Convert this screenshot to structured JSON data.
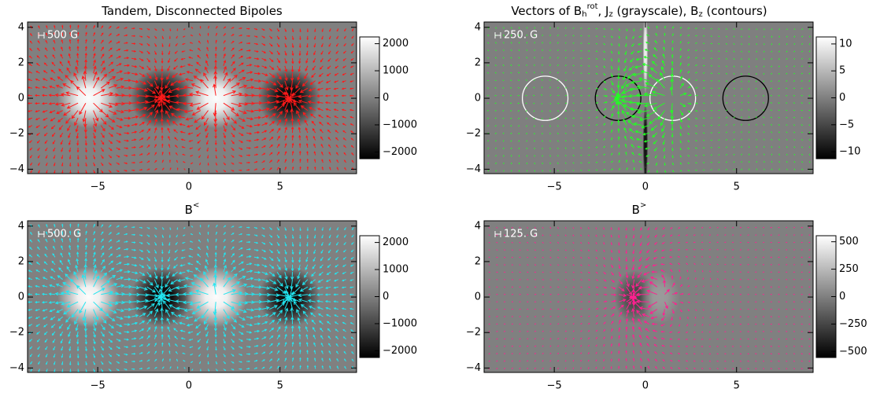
{
  "chart_data": [
    {
      "type": "vector-heatmap",
      "title": [
        {
          "text": "Tandem, Disconnected Bipoles"
        }
      ],
      "xlim": [
        -8.85,
        9.2
      ],
      "ylim": [
        -4.25,
        4.3
      ],
      "xticks": [
        {
          "value": -5,
          "label": "−5"
        },
        0,
        5
      ],
      "yticks": [
        {
          "value": -4,
          "label": "−4"
        },
        {
          "value": -2,
          "label": "−2"
        },
        0,
        2,
        4
      ],
      "zlim": [
        -2250,
        2250
      ],
      "zticks": [
        {
          "value": -2000,
          "label": "−2000"
        },
        {
          "value": -1000,
          "label": "−1000"
        },
        0,
        1000,
        2000
      ],
      "vector_label": "500 G",
      "vector_color": "#ff1a1a",
      "sources": [
        {
          "x": -5.5,
          "y": 0,
          "value": 2200
        },
        {
          "x": -1.5,
          "y": 0,
          "value": -2200
        },
        {
          "x": 1.5,
          "y": 0,
          "value": 2200
        },
        {
          "x": 5.5,
          "y": 0,
          "value": -2200
        }
      ]
    },
    {
      "type": "vector-heatmap",
      "title": [
        {
          "text": "Vectors of B"
        },
        {
          "text": "h",
          "style": "sub"
        },
        {
          "text": "rot",
          "style": "sup"
        },
        {
          "text": ", J"
        },
        {
          "text": "z",
          "style": "sub"
        },
        {
          "text": " (grayscale), B"
        },
        {
          "text": "z",
          "style": "sub"
        },
        {
          "text": " (contours)"
        }
      ],
      "xlim": [
        -8.85,
        9.2
      ],
      "ylim": [
        -4.25,
        4.3
      ],
      "xticks": [
        {
          "value": -5,
          "label": "−5"
        },
        0,
        5
      ],
      "yticks": [
        {
          "value": -4,
          "label": "−4"
        },
        {
          "value": -2,
          "label": "−2"
        },
        0,
        2,
        4
      ],
      "zlim": [
        -11.3,
        11.3
      ],
      "zticks": [
        {
          "value": -10,
          "label": "−10"
        },
        {
          "value": -5,
          "label": "−5"
        },
        0,
        5,
        10
      ],
      "vector_label": "250. G",
      "vector_color": "#22ff22",
      "sources": [
        {
          "x": 0,
          "y": 2.6,
          "value": 10
        },
        {
          "x": 0,
          "y": -2.6,
          "value": -10
        }
      ],
      "contours": [
        {
          "x": -5.5,
          "y": 0,
          "color": "#ffffff"
        },
        {
          "x": -1.5,
          "y": 0,
          "color": "#000000"
        },
        {
          "x": 1.5,
          "y": 0,
          "color": "#ffffff"
        },
        {
          "x": 5.5,
          "y": 0,
          "color": "#000000"
        }
      ]
    },
    {
      "type": "vector-heatmap",
      "title": [
        {
          "text": "B"
        },
        {
          "text": "<",
          "style": "sup"
        }
      ],
      "xlim": [
        -8.85,
        9.2
      ],
      "ylim": [
        -4.25,
        4.3
      ],
      "xticks": [
        {
          "value": -5,
          "label": "−5"
        },
        0,
        5
      ],
      "yticks": [
        {
          "value": -4,
          "label": "−4"
        },
        {
          "value": -2,
          "label": "−2"
        },
        0,
        2,
        4
      ],
      "zlim": [
        -2250,
        2250
      ],
      "zticks": [
        {
          "value": -2000,
          "label": "−2000"
        },
        {
          "value": -1000,
          "label": "−1000"
        },
        0,
        1000,
        2000
      ],
      "vector_label": "500. G",
      "vector_color": "#22e5f0",
      "sources": [
        {
          "x": -5.5,
          "y": 0,
          "value": 2200
        },
        {
          "x": -1.5,
          "y": 0,
          "value": -2200
        },
        {
          "x": 1.5,
          "y": 0,
          "value": 2200
        },
        {
          "x": 5.5,
          "y": 0,
          "value": -2200
        }
      ]
    },
    {
      "type": "vector-heatmap",
      "title": [
        {
          "text": "B"
        },
        {
          "text": ">",
          "style": "sup"
        }
      ],
      "xlim": [
        -8.85,
        9.2
      ],
      "ylim": [
        -4.25,
        4.3
      ],
      "xticks": [
        {
          "value": -5,
          "label": "−5"
        },
        0,
        5
      ],
      "yticks": [
        {
          "value": -4,
          "label": "−4"
        },
        {
          "value": -2,
          "label": "−2"
        },
        0,
        2,
        4
      ],
      "zlim": [
        -555,
        555
      ],
      "zticks": [
        {
          "value": -500,
          "label": "−500"
        },
        {
          "value": -250,
          "label": "−250"
        },
        0,
        250,
        500
      ],
      "vector_label": "125. G",
      "vector_color": "#ff2090",
      "sources": [
        {
          "x": -0.6,
          "y": 0,
          "value": -250
        },
        {
          "x": 0.8,
          "y": 0,
          "value": 120
        }
      ]
    }
  ]
}
